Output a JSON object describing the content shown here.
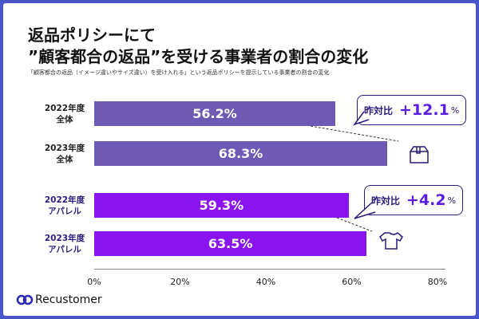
{
  "title_line1": "返品ポリシーにて",
  "title_line2": "”顧客都合の返品”を受ける事業者の割合の変化",
  "subtitle": "「顧客都合の返品（イメージ違いやサイズ違い）を受け入れる」という返品ポリシーを提示している事業者の割合の変化",
  "chart_data": {
    "type": "bar",
    "orientation": "horizontal",
    "categories": [
      [
        "2022年度",
        "全体"
      ],
      [
        "2023年度",
        "全体"
      ],
      [
        "2022年度",
        "アパレル"
      ],
      [
        "2023年度",
        "アパレル"
      ]
    ],
    "values": [
      56.2,
      68.3,
      59.3,
      63.5
    ],
    "data_labels": [
      "56.2%",
      "68.3%",
      "59.3%",
      "63.5%"
    ],
    "xlim": [
      0,
      80
    ],
    "x_ticks": [
      "0%",
      "20%",
      "40%",
      "60%",
      "80%"
    ],
    "colors": [
      "#6e5ab4",
      "#6e5ab4",
      "#8a14f0",
      "#8a14f0"
    ],
    "label_colors": [
      "#222222",
      "#222222",
      "#2a1a7a",
      "#2a1a7a"
    ],
    "annotations": [
      {
        "label": "昨対比",
        "value": "+12.1",
        "unit": "%",
        "icon": "box-icon"
      },
      {
        "label": "昨対比",
        "value": "+4.2",
        "unit": "%",
        "icon": "tshirt-icon"
      }
    ]
  },
  "logo": {
    "text": "Recustomer"
  },
  "frame_color": "#4a55c8"
}
